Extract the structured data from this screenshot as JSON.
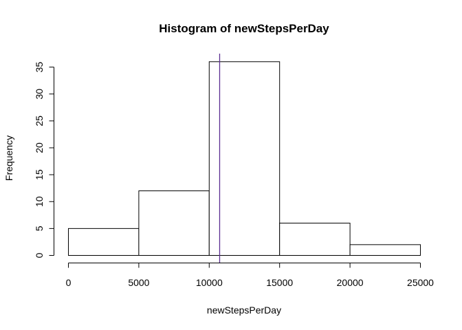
{
  "chart_data": {
    "type": "bar",
    "title": "Histogram of newStepsPerDay",
    "xlabel": "newStepsPerDay",
    "ylabel": "Frequency",
    "bins": [
      {
        "start": 0,
        "end": 5000,
        "count": 5
      },
      {
        "start": 5000,
        "end": 10000,
        "count": 12
      },
      {
        "start": 10000,
        "end": 15000,
        "count": 36
      },
      {
        "start": 15000,
        "end": 20000,
        "count": 6
      },
      {
        "start": 20000,
        "end": 25000,
        "count": 2
      }
    ],
    "xlim": [
      0,
      25000
    ],
    "ylim": [
      0,
      37.44
    ],
    "x_ticks": [
      0,
      5000,
      10000,
      15000,
      20000,
      25000
    ],
    "y_ticks": [
      0,
      5,
      10,
      15,
      20,
      25,
      30,
      35
    ],
    "vline": {
      "x": 10766,
      "color": "#5b2d91"
    },
    "grid": false,
    "legend": "none"
  }
}
